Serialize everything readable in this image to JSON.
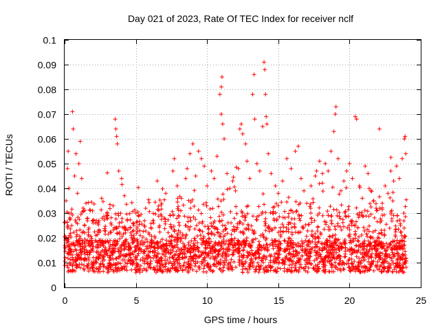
{
  "chart_data": {
    "type": "scatter",
    "title": "Day 021 of 2023, Rate Of TEC Index for receiver nclf",
    "xlabel": "GPS time / hours",
    "ylabel": "ROTI / TECUs",
    "xlim": [
      0,
      25
    ],
    "ylim": [
      0,
      0.1
    ],
    "xticks": [
      0,
      5,
      10,
      15,
      20,
      25
    ],
    "xtick_labels": [
      "0",
      "5",
      "10",
      "15",
      "20",
      "25"
    ],
    "yticks": [
      0,
      0.01,
      0.02,
      0.03,
      0.04,
      0.05,
      0.06,
      0.07,
      0.08,
      0.09,
      0.1
    ],
    "ytick_labels": [
      "0",
      "0.01",
      "0.02",
      "0.03",
      "0.04",
      "0.05",
      "0.06",
      "0.07",
      "0.08",
      "0.09",
      "0.1"
    ],
    "grid": true,
    "legend": "none",
    "marker": "plus",
    "color": "#ff0000",
    "series": [
      {
        "points": [
          [
            0.05,
            0.012
          ],
          [
            0.1,
            0.035
          ],
          [
            0.15,
            0.018
          ],
          [
            0.2,
            0.048
          ],
          [
            0.25,
            0.055
          ],
          [
            0.3,
            0.04
          ],
          [
            0.35,
            0.021
          ],
          [
            0.4,
            0.015
          ],
          [
            0.45,
            0.03
          ],
          [
            0.5,
            0.025
          ],
          [
            0.55,
            0.071
          ],
          [
            0.6,
            0.064
          ],
          [
            0.7,
            0.045
          ],
          [
            0.8,
            0.054
          ],
          [
            0.9,
            0.038
          ],
          [
            1.0,
            0.05
          ],
          [
            1.1,
            0.059
          ],
          [
            1.2,
            0.044
          ],
          [
            1.3,
            0.032
          ],
          [
            1.4,
            0.022
          ],
          [
            1.5,
            0.034
          ],
          [
            1.6,
            0.028
          ],
          [
            1.7,
            0.024
          ],
          [
            1.8,
            0.031
          ],
          [
            1.9,
            0.019
          ],
          [
            2.0,
            0.026
          ],
          [
            2.2,
            0.021
          ],
          [
            2.4,
            0.027
          ],
          [
            2.6,
            0.036
          ],
          [
            2.8,
            0.023
          ],
          [
            3.0,
            0.029
          ],
          [
            3.2,
            0.017
          ],
          [
            3.4,
            0.033
          ],
          [
            3.55,
            0.068
          ],
          [
            3.6,
            0.064
          ],
          [
            3.65,
            0.061
          ],
          [
            3.7,
            0.058
          ],
          [
            3.8,
            0.047
          ],
          [
            4.0,
            0.044
          ],
          [
            4.2,
            0.037
          ],
          [
            4.4,
            0.027
          ],
          [
            4.6,
            0.024
          ],
          [
            4.8,
            0.02
          ],
          [
            5.0,
            0.015
          ],
          [
            5.3,
            0.021
          ],
          [
            5.6,
            0.025
          ],
          [
            5.9,
            0.022
          ],
          [
            6.2,
            0.027
          ],
          [
            6.5,
            0.043
          ],
          [
            6.8,
            0.034
          ],
          [
            7.1,
            0.038
          ],
          [
            7.4,
            0.029
          ],
          [
            7.6,
            0.047
          ],
          [
            7.7,
            0.052
          ],
          [
            7.9,
            0.041
          ],
          [
            8.2,
            0.036
          ],
          [
            8.5,
            0.044
          ],
          [
            8.6,
            0.048
          ],
          [
            8.8,
            0.054
          ],
          [
            9.0,
            0.058
          ],
          [
            9.2,
            0.045
          ],
          [
            9.4,
            0.055
          ],
          [
            9.6,
            0.052
          ],
          [
            9.8,
            0.049
          ],
          [
            10.0,
            0.041
          ],
          [
            10.3,
            0.047
          ],
          [
            10.5,
            0.044
          ],
          [
            10.7,
            0.053
          ],
          [
            10.9,
            0.078
          ],
          [
            11.0,
            0.081
          ],
          [
            11.05,
            0.085
          ],
          [
            11.0,
            0.07
          ],
          [
            11.1,
            0.066
          ],
          [
            11.2,
            0.06
          ],
          [
            11.4,
            0.046
          ],
          [
            11.6,
            0.04
          ],
          [
            11.8,
            0.043
          ],
          [
            12.0,
            0.039
          ],
          [
            12.2,
            0.048
          ],
          [
            12.3,
            0.064
          ],
          [
            12.4,
            0.066
          ],
          [
            12.5,
            0.062
          ],
          [
            12.7,
            0.058
          ],
          [
            12.8,
            0.051
          ],
          [
            13.0,
            0.044
          ],
          [
            13.2,
            0.078
          ],
          [
            13.3,
            0.086
          ],
          [
            13.35,
            0.068
          ],
          [
            13.5,
            0.05
          ],
          [
            13.7,
            0.047
          ],
          [
            13.9,
            0.065
          ],
          [
            14.0,
            0.091
          ],
          [
            14.05,
            0.088
          ],
          [
            14.1,
            0.078
          ],
          [
            14.15,
            0.069
          ],
          [
            14.2,
            0.066
          ],
          [
            14.3,
            0.054
          ],
          [
            14.5,
            0.046
          ],
          [
            14.8,
            0.041
          ],
          [
            15.0,
            0.038
          ],
          [
            15.3,
            0.043
          ],
          [
            15.6,
            0.052
          ],
          [
            15.9,
            0.048
          ],
          [
            16.2,
            0.055
          ],
          [
            16.4,
            0.057
          ],
          [
            16.6,
            0.044
          ],
          [
            16.8,
            0.039
          ],
          [
            17.0,
            0.034
          ],
          [
            17.3,
            0.041
          ],
          [
            17.6,
            0.045
          ],
          [
            17.9,
            0.051
          ],
          [
            18.1,
            0.046
          ],
          [
            18.3,
            0.05
          ],
          [
            18.5,
            0.047
          ],
          [
            18.7,
            0.055
          ],
          [
            18.9,
            0.063
          ],
          [
            19.0,
            0.07
          ],
          [
            19.05,
            0.073
          ],
          [
            19.2,
            0.052
          ],
          [
            19.4,
            0.039
          ],
          [
            19.6,
            0.043
          ],
          [
            19.8,
            0.047
          ],
          [
            20.0,
            0.05
          ],
          [
            20.2,
            0.044
          ],
          [
            20.4,
            0.069
          ],
          [
            20.5,
            0.068
          ],
          [
            20.7,
            0.041
          ],
          [
            20.9,
            0.036
          ],
          [
            21.1,
            0.049
          ],
          [
            21.3,
            0.046
          ],
          [
            21.5,
            0.039
          ],
          [
            21.7,
            0.035
          ],
          [
            21.9,
            0.031
          ],
          [
            22.1,
            0.064
          ],
          [
            22.3,
            0.034
          ],
          [
            22.5,
            0.041
          ],
          [
            22.7,
            0.038
          ],
          [
            22.9,
            0.047
          ],
          [
            23.1,
            0.043
          ],
          [
            23.3,
            0.049
          ],
          [
            23.5,
            0.044
          ],
          [
            23.7,
            0.052
          ],
          [
            23.85,
            0.06
          ],
          [
            23.9,
            0.061
          ],
          [
            23.95,
            0.054
          ]
        ]
      }
    ]
  }
}
